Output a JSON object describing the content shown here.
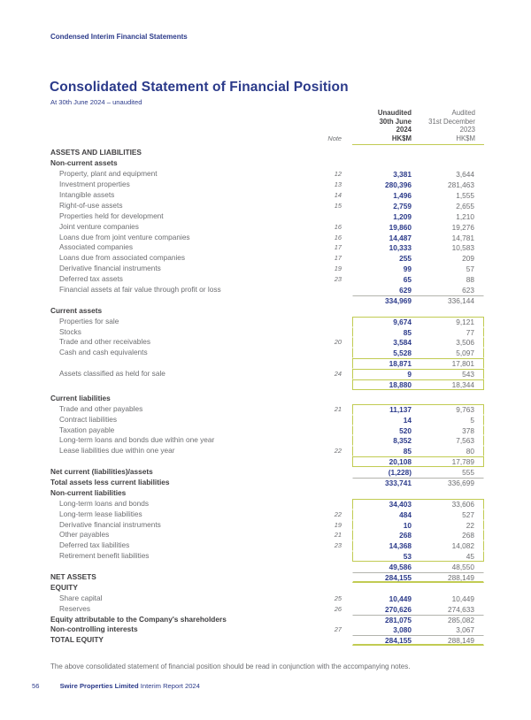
{
  "page": {
    "breadcrumb": "Condensed Interim Financial Statements",
    "title": "Consolidated Statement of Financial Position",
    "subtitle": "At 30th June 2024 – unaudited",
    "footnote": "The above consolidated statement of financial position should be read in conjunction with the accompanying notes.",
    "page_number": "56",
    "footer_company": "Swire Properties Limited",
    "footer_report": "Interim Report 2024"
  },
  "colors": {
    "navy": "#2b3a8a",
    "charcoal": "#414042",
    "gray_text": "#6d6e71",
    "olive_rule": "#c1cb52",
    "gray_rule": "#b3b4ad"
  },
  "table": {
    "note_label": "Note",
    "col_2024": [
      "Unaudited",
      "30th June",
      "2024",
      "HK$M"
    ],
    "col_2023": [
      "Audited",
      "31st December",
      "2023",
      "HK$M"
    ],
    "rows": [
      {
        "style": "section",
        "label": "ASSETS AND LIABILITIES"
      },
      {
        "style": "section",
        "label": "Non-current assets"
      },
      {
        "style": "item",
        "label": "Property, plant and equipment",
        "note": "12",
        "v2024": "3,381",
        "v2023": "3,644"
      },
      {
        "style": "item",
        "label": "Investment properties",
        "note": "13",
        "v2024": "280,396",
        "v2023": "281,463"
      },
      {
        "style": "item",
        "label": "Intangible assets",
        "note": "14",
        "v2024": "1,496",
        "v2023": "1,555"
      },
      {
        "style": "item",
        "label": "Right-of-use assets",
        "note": "15",
        "v2024": "2,759",
        "v2023": "2,655"
      },
      {
        "style": "item",
        "label": "Properties held for development",
        "v2024": "1,209",
        "v2023": "1,210"
      },
      {
        "style": "item",
        "label": "Joint venture companies",
        "note": "16",
        "v2024": "19,860",
        "v2023": "19,276"
      },
      {
        "style": "item",
        "label": "Loans due from joint venture companies",
        "note": "16",
        "v2024": "14,487",
        "v2023": "14,781"
      },
      {
        "style": "item",
        "label": "Associated companies",
        "note": "17",
        "v2024": "10,333",
        "v2023": "10,583"
      },
      {
        "style": "item",
        "label": "Loans due from associated companies",
        "note": "17",
        "v2024": "255",
        "v2023": "209"
      },
      {
        "style": "item",
        "label": "Derivative financial instruments",
        "note": "19",
        "v2024": "99",
        "v2023": "57"
      },
      {
        "style": "item",
        "label": "Deferred tax assets",
        "note": "23",
        "v2024": "65",
        "v2023": "88"
      },
      {
        "style": "item",
        "label": "Financial assets at fair value through profit or loss",
        "v2024": "629",
        "v2023": "623"
      },
      {
        "style": "subtotal",
        "v2024": "334,969",
        "v2023": "336,144",
        "rule_top": "gray"
      },
      {
        "style": "section",
        "label": "Current assets"
      },
      {
        "style": "item",
        "label": "Properties for sale",
        "v2024": "9,674",
        "v2023": "9,121",
        "box": true,
        "box_edge": "start"
      },
      {
        "style": "item",
        "label": "Stocks",
        "v2024": "85",
        "v2023": "77",
        "box": true
      },
      {
        "style": "item",
        "label": "Trade and other receivables",
        "note": "20",
        "v2024": "3,584",
        "v2023": "3,506",
        "box": true
      },
      {
        "style": "item",
        "label": "Cash and cash equivalents",
        "v2024": "5,528",
        "v2023": "5,097",
        "box": true
      },
      {
        "style": "subtotal",
        "v2024": "18,871",
        "v2023": "17,801",
        "box": true,
        "rule_top": "olive"
      },
      {
        "style": "item",
        "label": "Assets classified as held for sale",
        "note": "24",
        "v2024": "9",
        "v2023": "543",
        "box": true,
        "rule_top": "olive"
      },
      {
        "style": "subtotal",
        "v2024": "18,880",
        "v2023": "18,344",
        "box": true,
        "box_edge": "end",
        "rule_top": "olive"
      },
      {
        "style": "spacer"
      },
      {
        "style": "section",
        "label": "Current liabilities"
      },
      {
        "style": "item",
        "label": "Trade and other payables",
        "note": "21",
        "v2024": "11,137",
        "v2023": "9,763",
        "box": true,
        "box_edge": "start"
      },
      {
        "style": "item",
        "label": "Contract liabilities",
        "v2024": "14",
        "v2023": "5",
        "box": true
      },
      {
        "style": "item",
        "label": "Taxation payable",
        "v2024": "520",
        "v2023": "378",
        "box": true
      },
      {
        "style": "item",
        "label": "Long-term loans and bonds due within one year",
        "v2024": "8,352",
        "v2023": "7,563",
        "box": true
      },
      {
        "style": "item",
        "label": "Lease liabilities due within one year",
        "note": "22",
        "v2024": "85",
        "v2023": "80",
        "box": true
      },
      {
        "style": "subtotal",
        "v2024": "20,108",
        "v2023": "17,789",
        "box": true,
        "box_edge": "end",
        "rule_top": "olive"
      },
      {
        "style": "bold",
        "label": "Net current (liabilities)/assets",
        "v2024": "(1,228)",
        "v2023": "555"
      },
      {
        "style": "bold",
        "label": "Total assets less current liabilities",
        "v2024": "333,741",
        "v2023": "336,699",
        "rule_top": "gray"
      },
      {
        "style": "section",
        "label": "Non-current liabilities"
      },
      {
        "style": "item",
        "label": "Long-term loans and bonds",
        "v2024": "34,403",
        "v2023": "33,606",
        "box": true,
        "box_edge": "start"
      },
      {
        "style": "item",
        "label": "Long-term lease liabilities",
        "note": "22",
        "v2024": "484",
        "v2023": "527",
        "box": true
      },
      {
        "style": "item",
        "label": "Derivative financial instruments",
        "note": "19",
        "v2024": "10",
        "v2023": "22",
        "box": true
      },
      {
        "style": "item",
        "label": "Other payables",
        "note": "21",
        "v2024": "268",
        "v2023": "268",
        "box": true
      },
      {
        "style": "item",
        "label": "Deferred tax liabilities",
        "note": "23",
        "v2024": "14,368",
        "v2023": "14,082",
        "box": true
      },
      {
        "style": "item",
        "label": "Retirement benefit liabilities",
        "v2024": "53",
        "v2023": "45",
        "box": true,
        "box_edge": "end"
      },
      {
        "style": "subtotal",
        "v2024": "49,586",
        "v2023": "48,550"
      },
      {
        "style": "bold",
        "label": "NET ASSETS",
        "v2024": "284,155",
        "v2023": "288,149",
        "rule_top": "gray",
        "rule_bottom": "olive"
      },
      {
        "style": "section",
        "label": "EQUITY"
      },
      {
        "style": "item",
        "label": "Share capital",
        "note": "25",
        "v2024": "10,449",
        "v2023": "10,449"
      },
      {
        "style": "item",
        "label": "Reserves",
        "note": "26",
        "v2024": "270,626",
        "v2023": "274,633"
      },
      {
        "style": "bold",
        "label": "Equity attributable to the Company's shareholders",
        "v2024": "281,075",
        "v2023": "285,082",
        "rule_top": "gray"
      },
      {
        "style": "bold",
        "label": "Non-controlling interests",
        "note": "27",
        "v2024": "3,080",
        "v2023": "3,067"
      },
      {
        "style": "bold",
        "label": "TOTAL EQUITY",
        "v2024": "284,155",
        "v2023": "288,149",
        "rule_top": "gray",
        "rule_bottom": "olive"
      }
    ]
  }
}
